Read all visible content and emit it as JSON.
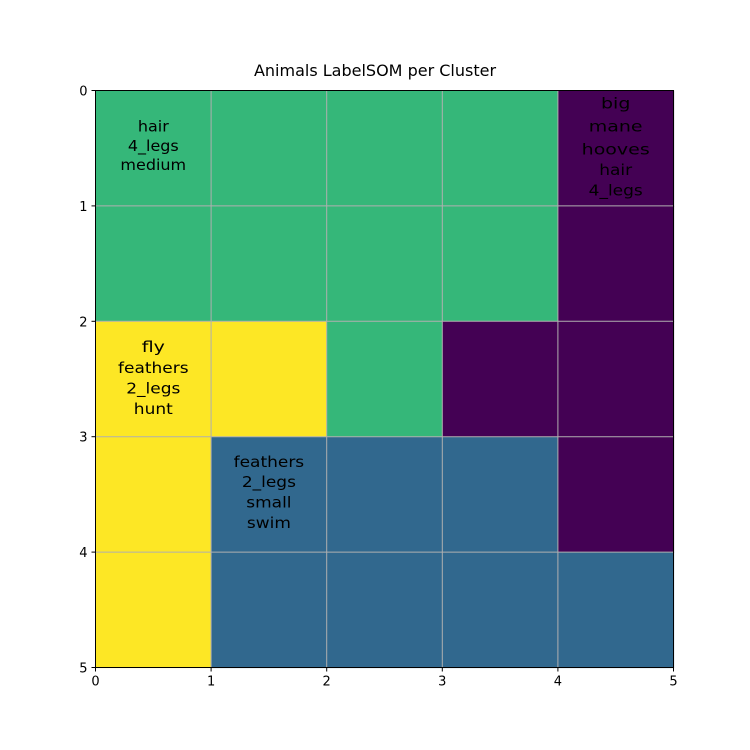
{
  "chart_data": {
    "type": "heatmap",
    "title": "Animals LabelSOM per Cluster",
    "xlabel": "",
    "ylabel": "",
    "xlim": [
      0,
      5
    ],
    "ylim": [
      0,
      5
    ],
    "y_inverted": true,
    "grid": true,
    "x_ticks": [
      "0",
      "1",
      "2",
      "3",
      "4",
      "5"
    ],
    "y_ticks": [
      "0",
      "1",
      "2",
      "3",
      "4",
      "5"
    ],
    "cluster_colors": {
      "0": "#440154",
      "1": "#31688e",
      "2": "#35b779",
      "3": "#fde725"
    },
    "cluster_grid": [
      [
        2,
        2,
        2,
        2,
        0
      ],
      [
        2,
        2,
        2,
        2,
        0
      ],
      [
        3,
        3,
        2,
        0,
        0
      ],
      [
        3,
        1,
        1,
        1,
        0
      ],
      [
        3,
        1,
        1,
        1,
        1
      ]
    ],
    "annotations": [
      {
        "cell": [
          0,
          0
        ],
        "lines": [
          {
            "text": "hair",
            "rank": 2
          },
          {
            "text": "4_legs",
            "rank": 2
          },
          {
            "text": "medium",
            "rank": 2
          }
        ]
      },
      {
        "cell": [
          4,
          0
        ],
        "lines": [
          {
            "text": "big",
            "rank": 0
          },
          {
            "text": "mane",
            "rank": 0
          },
          {
            "text": "hooves",
            "rank": 0
          },
          {
            "text": "hair",
            "rank": 1
          },
          {
            "text": "4_legs",
            "rank": 1
          }
        ]
      },
      {
        "cell": [
          0,
          2
        ],
        "lines": [
          {
            "text": "fly",
            "rank": 0
          },
          {
            "text": "feathers",
            "rank": 1
          },
          {
            "text": "2_legs",
            "rank": 1
          },
          {
            "text": "hunt",
            "rank": 1
          }
        ]
      },
      {
        "cell": [
          1,
          3
        ],
        "lines": [
          {
            "text": "feathers",
            "rank": 1
          },
          {
            "text": "2_legs",
            "rank": 1
          },
          {
            "text": "small",
            "rank": 1
          },
          {
            "text": "swim",
            "rank": 1
          }
        ]
      }
    ]
  }
}
